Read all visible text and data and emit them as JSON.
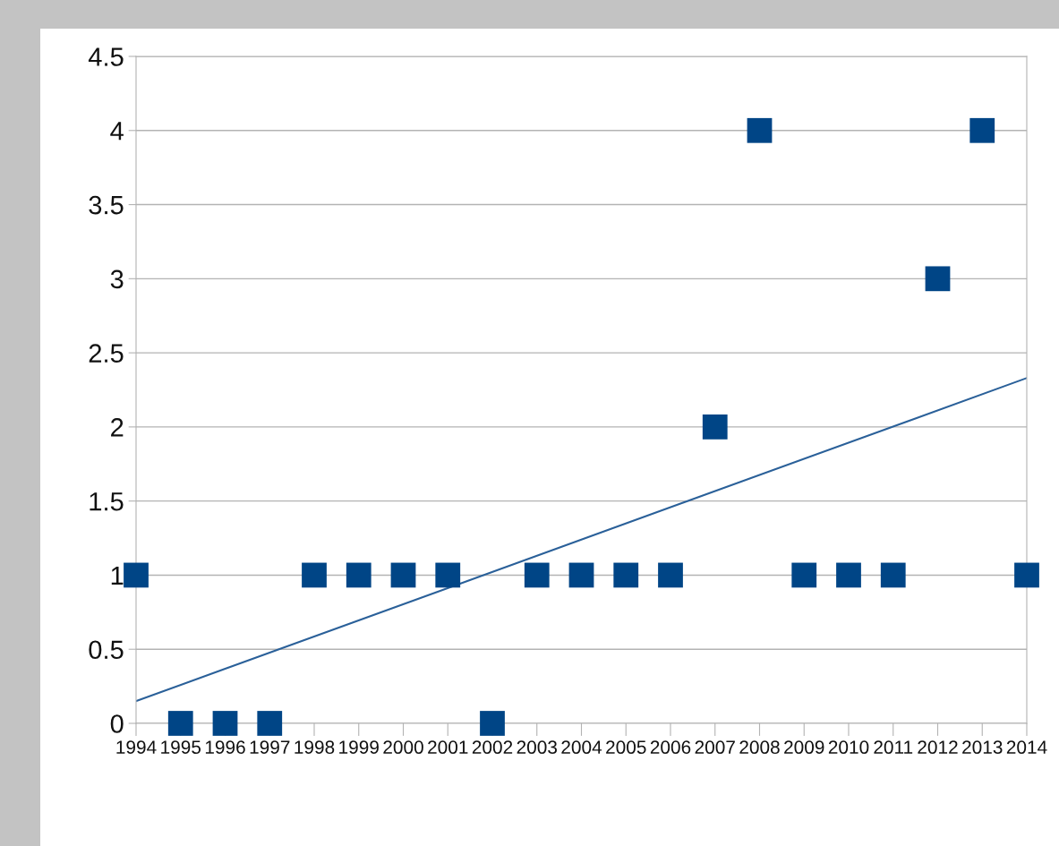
{
  "chart_data": {
    "type": "scatter",
    "x": [
      1994,
      1995,
      1996,
      1997,
      1998,
      1999,
      2000,
      2001,
      2002,
      2003,
      2004,
      2005,
      2006,
      2007,
      2008,
      2009,
      2010,
      2011,
      2012,
      2013,
      2014
    ],
    "series": [
      {
        "color": "#004586",
        "marker": "square",
        "values": [
          1,
          0,
          0,
          0,
          1,
          1,
          1,
          1,
          0,
          1,
          1,
          1,
          1,
          2,
          4,
          1,
          1,
          1,
          3,
          4,
          1
        ]
      },
      {
        "type": "line",
        "color": "#2a6099",
        "marker": "none",
        "line_style": "solid",
        "x": [
          1994,
          2014
        ],
        "values": [
          0.15,
          2.33
        ]
      }
    ],
    "xlim": [
      1994,
      2014
    ],
    "xticks": [
      1994,
      1995,
      1996,
      1997,
      1998,
      1999,
      2000,
      2001,
      2002,
      2003,
      2004,
      2005,
      2006,
      2007,
      2008,
      2009,
      2010,
      2011,
      2012,
      2013,
      2014
    ],
    "ylim": [
      0,
      4.5
    ],
    "yticks": [
      0,
      0.5,
      1,
      1.5,
      2,
      2.5,
      3,
      3.5,
      4,
      4.5
    ],
    "grid": "y",
    "legend": false
  }
}
